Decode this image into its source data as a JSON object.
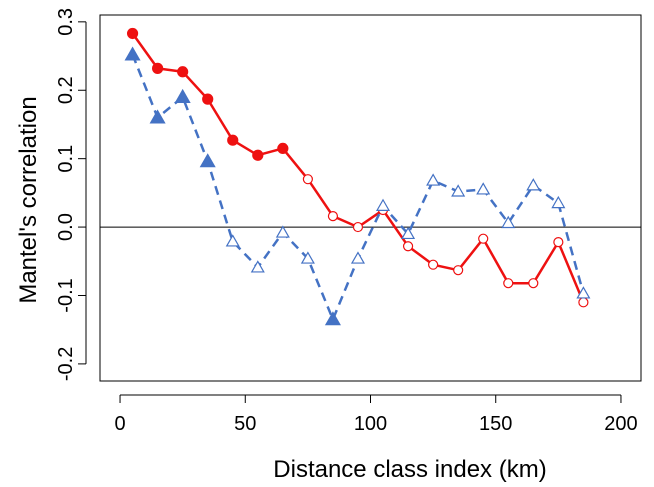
{
  "chart_data": {
    "type": "line",
    "xlabel": "Distance class index (km)",
    "ylabel": "Mantel's correlation",
    "xlim": [
      -8,
      208
    ],
    "ylim": [
      -0.225,
      0.31
    ],
    "x_ticks": [
      0,
      50,
      100,
      150,
      200
    ],
    "x_tick_labels": [
      "0",
      "50",
      "100",
      "150",
      "200"
    ],
    "y_ticks": [
      -0.2,
      -0.1,
      0.0,
      0.1,
      0.2,
      0.3
    ],
    "y_tick_labels": [
      "-0.2",
      "-0.1",
      "0.0",
      "0.1",
      "0.2",
      "0.3"
    ],
    "reference_line_y": 0.0,
    "grid": false,
    "legend": "none",
    "series": [
      {
        "color": "#ee1111",
        "line_style": "solid",
        "marker": "circle",
        "x": [
          5,
          15,
          25,
          35,
          45,
          55,
          65,
          75,
          85,
          95,
          105,
          115,
          125,
          135,
          145,
          155,
          165,
          175,
          185
        ],
        "y": [
          0.283,
          0.232,
          0.227,
          0.187,
          0.127,
          0.105,
          0.115,
          0.07,
          0.016,
          0.0,
          0.025,
          -0.028,
          -0.055,
          -0.063,
          -0.017,
          -0.082,
          -0.082,
          -0.022,
          -0.11
        ],
        "filled": [
          true,
          true,
          true,
          true,
          true,
          true,
          true,
          false,
          false,
          false,
          false,
          false,
          false,
          false,
          false,
          false,
          false,
          false,
          false
        ]
      },
      {
        "color": "#4472c4",
        "line_style": "dashed",
        "marker": "triangle",
        "x": [
          5,
          15,
          25,
          35,
          45,
          55,
          65,
          75,
          85,
          95,
          105,
          115,
          125,
          135,
          145,
          155,
          165,
          175,
          185
        ],
        "y": [
          0.252,
          0.16,
          0.19,
          0.096,
          -0.021,
          -0.059,
          -0.008,
          -0.046,
          -0.135,
          -0.046,
          0.031,
          -0.01,
          0.068,
          0.052,
          0.055,
          0.006,
          0.061,
          0.035,
          -0.097
        ],
        "filled": [
          true,
          true,
          true,
          true,
          false,
          false,
          false,
          false,
          true,
          false,
          false,
          false,
          false,
          false,
          false,
          false,
          false,
          false,
          false
        ]
      }
    ]
  }
}
